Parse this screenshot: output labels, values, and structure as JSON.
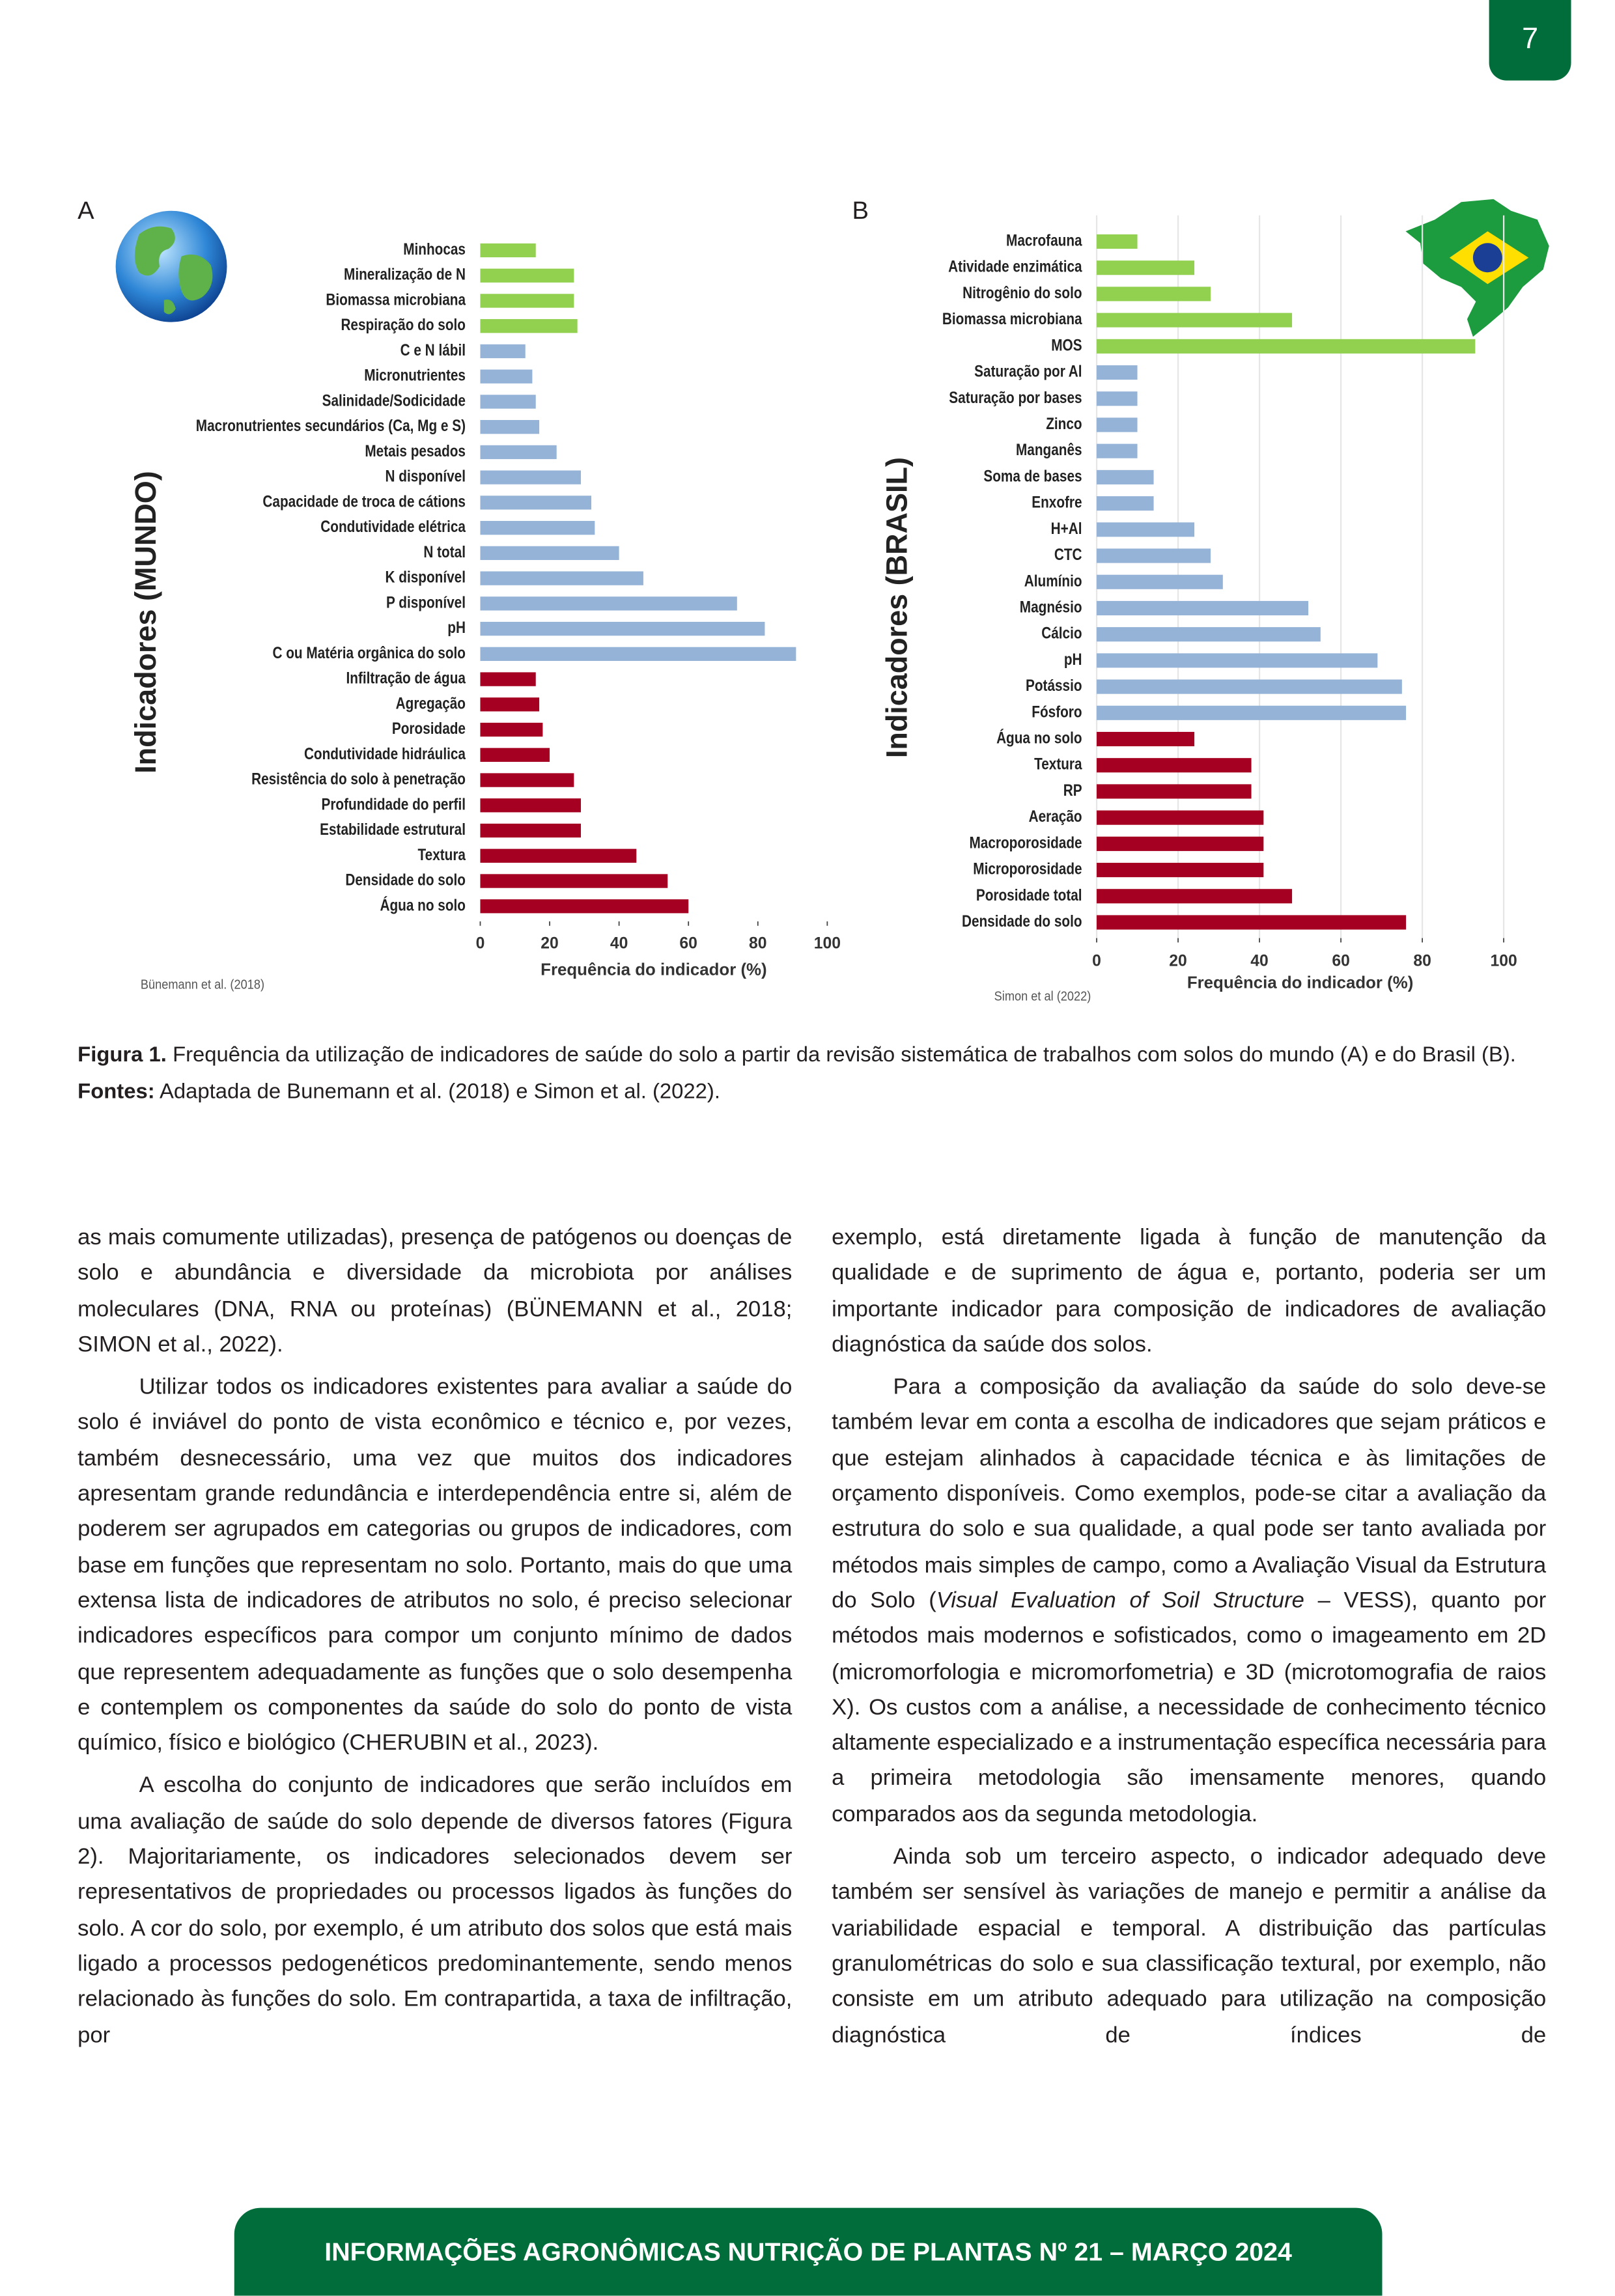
{
  "page_number": "7",
  "chart_data": [
    {
      "type": "bar",
      "orientation": "horizontal",
      "panel": "A",
      "ylabel": "Indicadores (MUNDO)",
      "xlabel": "Frequência do indicador (%)",
      "source": "Bünemann et al. (2018)",
      "categories": [
        "Minhocas",
        "Mineralização de N",
        "Biomassa microbiana",
        "Respiração do solo",
        "C e N lábil",
        "Micronutrientes",
        "Salinidade/Sodicidade",
        "Macronutrientes secundários (Ca, Mg e S)",
        "Metais pesados",
        "N disponível",
        "Capacidade de troca de cátions",
        "Condutividade elétrica",
        "N total",
        "K disponível",
        "P disponível",
        "pH",
        "C ou Matéria orgânica do solo",
        "Infiltração de água",
        "Agregação",
        "Porosidade",
        "Condutividade hidráulica",
        "Resistência do solo à penetração",
        "Profundidade do perfil",
        "Estabilidade estrutural",
        "Textura",
        "Densidade do solo",
        "Água no solo"
      ],
      "values": [
        16,
        27,
        27,
        28,
        13,
        15,
        16,
        17,
        22,
        29,
        32,
        33,
        40,
        47,
        74,
        82,
        91,
        16,
        17,
        18,
        20,
        27,
        29,
        29,
        45,
        54,
        60
      ],
      "colors": [
        "#92d050",
        "#92d050",
        "#92d050",
        "#92d050",
        "#95b3d7",
        "#95b3d7",
        "#95b3d7",
        "#95b3d7",
        "#95b3d7",
        "#95b3d7",
        "#95b3d7",
        "#95b3d7",
        "#95b3d7",
        "#95b3d7",
        "#95b3d7",
        "#95b3d7",
        "#95b3d7",
        "#a50021",
        "#a50021",
        "#a50021",
        "#a50021",
        "#a50021",
        "#a50021",
        "#a50021",
        "#a50021",
        "#a50021",
        "#a50021"
      ],
      "xlim": [
        0,
        100
      ],
      "xticks": [
        0,
        20,
        40,
        60,
        80,
        100
      ],
      "grid": false
    },
    {
      "type": "bar",
      "orientation": "horizontal",
      "panel": "B",
      "ylabel": "Indicadores (BRASIL)",
      "xlabel": "Frequência do indicador (%)",
      "source": "Simon et al (2022)",
      "categories": [
        "Macrofauna",
        "Atividade enzimática",
        "Nitrogênio do solo",
        "Biomassa microbiana",
        "MOS",
        "Saturação por Al",
        "Saturação por bases",
        "Zinco",
        "Manganês",
        "Soma de bases",
        "Enxofre",
        "H+Al",
        "CTC",
        "Alumínio",
        "Magnésio",
        "Cálcio",
        "pH",
        "Potássio",
        "Fósforo",
        "Água no solo",
        "Textura",
        "RP",
        "Aeração",
        "Macroporosidade",
        "Microporosidade",
        "Porosidade total",
        "Densidade do solo"
      ],
      "values": [
        10,
        24,
        28,
        48,
        93,
        10,
        10,
        10,
        10,
        14,
        14,
        24,
        28,
        31,
        52,
        55,
        69,
        75,
        76,
        24,
        38,
        38,
        41,
        41,
        41,
        48,
        76
      ],
      "colors": [
        "#92d050",
        "#92d050",
        "#92d050",
        "#92d050",
        "#92d050",
        "#95b3d7",
        "#95b3d7",
        "#95b3d7",
        "#95b3d7",
        "#95b3d7",
        "#95b3d7",
        "#95b3d7",
        "#95b3d7",
        "#95b3d7",
        "#95b3d7",
        "#95b3d7",
        "#95b3d7",
        "#95b3d7",
        "#95b3d7",
        "#a50021",
        "#a50021",
        "#a50021",
        "#a50021",
        "#a50021",
        "#a50021",
        "#a50021",
        "#a50021"
      ],
      "xlim": [
        0,
        100
      ],
      "xticks": [
        0,
        20,
        40,
        60,
        80,
        100
      ],
      "grid": true
    }
  ],
  "caption": {
    "label": "Figura 1.",
    "text": "Frequência da utilização de indicadores de saúde do solo a partir da revisão sistemática de trabalhos com solos do mundo (A) e do Brasil (B)."
  },
  "sources": {
    "label": "Fontes:",
    "text": "Adaptada de Bunemann et al. (2018) e Simon et al. (2022)."
  },
  "body": {
    "left": [
      "as mais comumente utilizadas), presença de patógenos ou doenças de solo e abundância e diversidade da microbiota por análises moleculares (DNA, RNA ou proteínas) (BÜNEMANN et al., 2018; SIMON et al., 2022).",
      "Utilizar todos os indicadores existentes para avaliar a saúde do solo é inviável do ponto de vista econômico e técnico e, por vezes, também desnecessário, uma vez que muitos dos indicadores apresentam grande redundância e interdependência entre si, além de poderem ser agrupados em categorias ou grupos de indicadores, com base em funções que representam no solo. Portanto, mais do que uma extensa lista de indicadores de atributos no solo, é preciso selecionar indicadores específicos para compor um conjunto mínimo de dados que representem adequadamente as funções que o solo desempenha e contemplem os componentes da saúde do solo do ponto de vista químico, físico e biológico (CHERUBIN et al., 2023).",
      "A escolha do conjunto de indicadores que serão incluídos em uma avaliação de saúde do solo depende de diversos fatores (Figura 2). Majoritariamente, os indicadores selecionados devem ser representativos de propriedades ou processos ligados às funções do solo. A cor do solo, por exemplo, é um atributo dos solos que está mais ligado a processos pedogenéticos predominantemente, sendo menos relacionado às funções do solo. Em contrapartida, a taxa de infiltração, por"
    ],
    "right": [
      "exemplo, está diretamente ligada à função de manutenção da qualidade e de suprimento de água e, portanto, poderia ser um importante indicador para composição de indicadores de avaliação diagnóstica da saúde dos solos.",
      [
        "Para a composição da avaliação da saúde do solo deve-se também levar em conta a escolha de indicadores que sejam práticos e que estejam alinhados à capacidade técnica e às limitações de orçamento disponíveis. Como exemplos, pode-se citar a avaliação da estrutura do solo e sua qualidade, a qual pode ser tanto avaliada por métodos mais simples de campo, como a Avaliação Visual da Estrutura do Solo (",
        "Visual Evaluation of Soil Structure",
        " – VESS), quanto por métodos mais modernos e sofisticados, como o imageamento em 2D (micromorfologia e micromorfometria) e 3D (microtomografia de raios X). Os custos com a análise, a necessidade de conhecimento técnico altamente especializado e a instrumentação específica necessária para a primeira metodologia são imensamente menores, quando comparados aos da segunda metodologia."
      ],
      "Ainda sob um terceiro aspecto, o indicador adequado deve também ser sensível às variações de manejo e permitir a análise da variabilidade espacial e temporal. A distribuição das partículas granulométricas do solo e sua classificação textural, por exemplo, não consiste em um atributo adequado para utilização na composição diagnóstica de índices de"
    ]
  },
  "footer": "INFORMAÇÕES AGRONÔMICAS NUTRIÇÃO DE PLANTAS Nº 21 – MARÇO 2024"
}
